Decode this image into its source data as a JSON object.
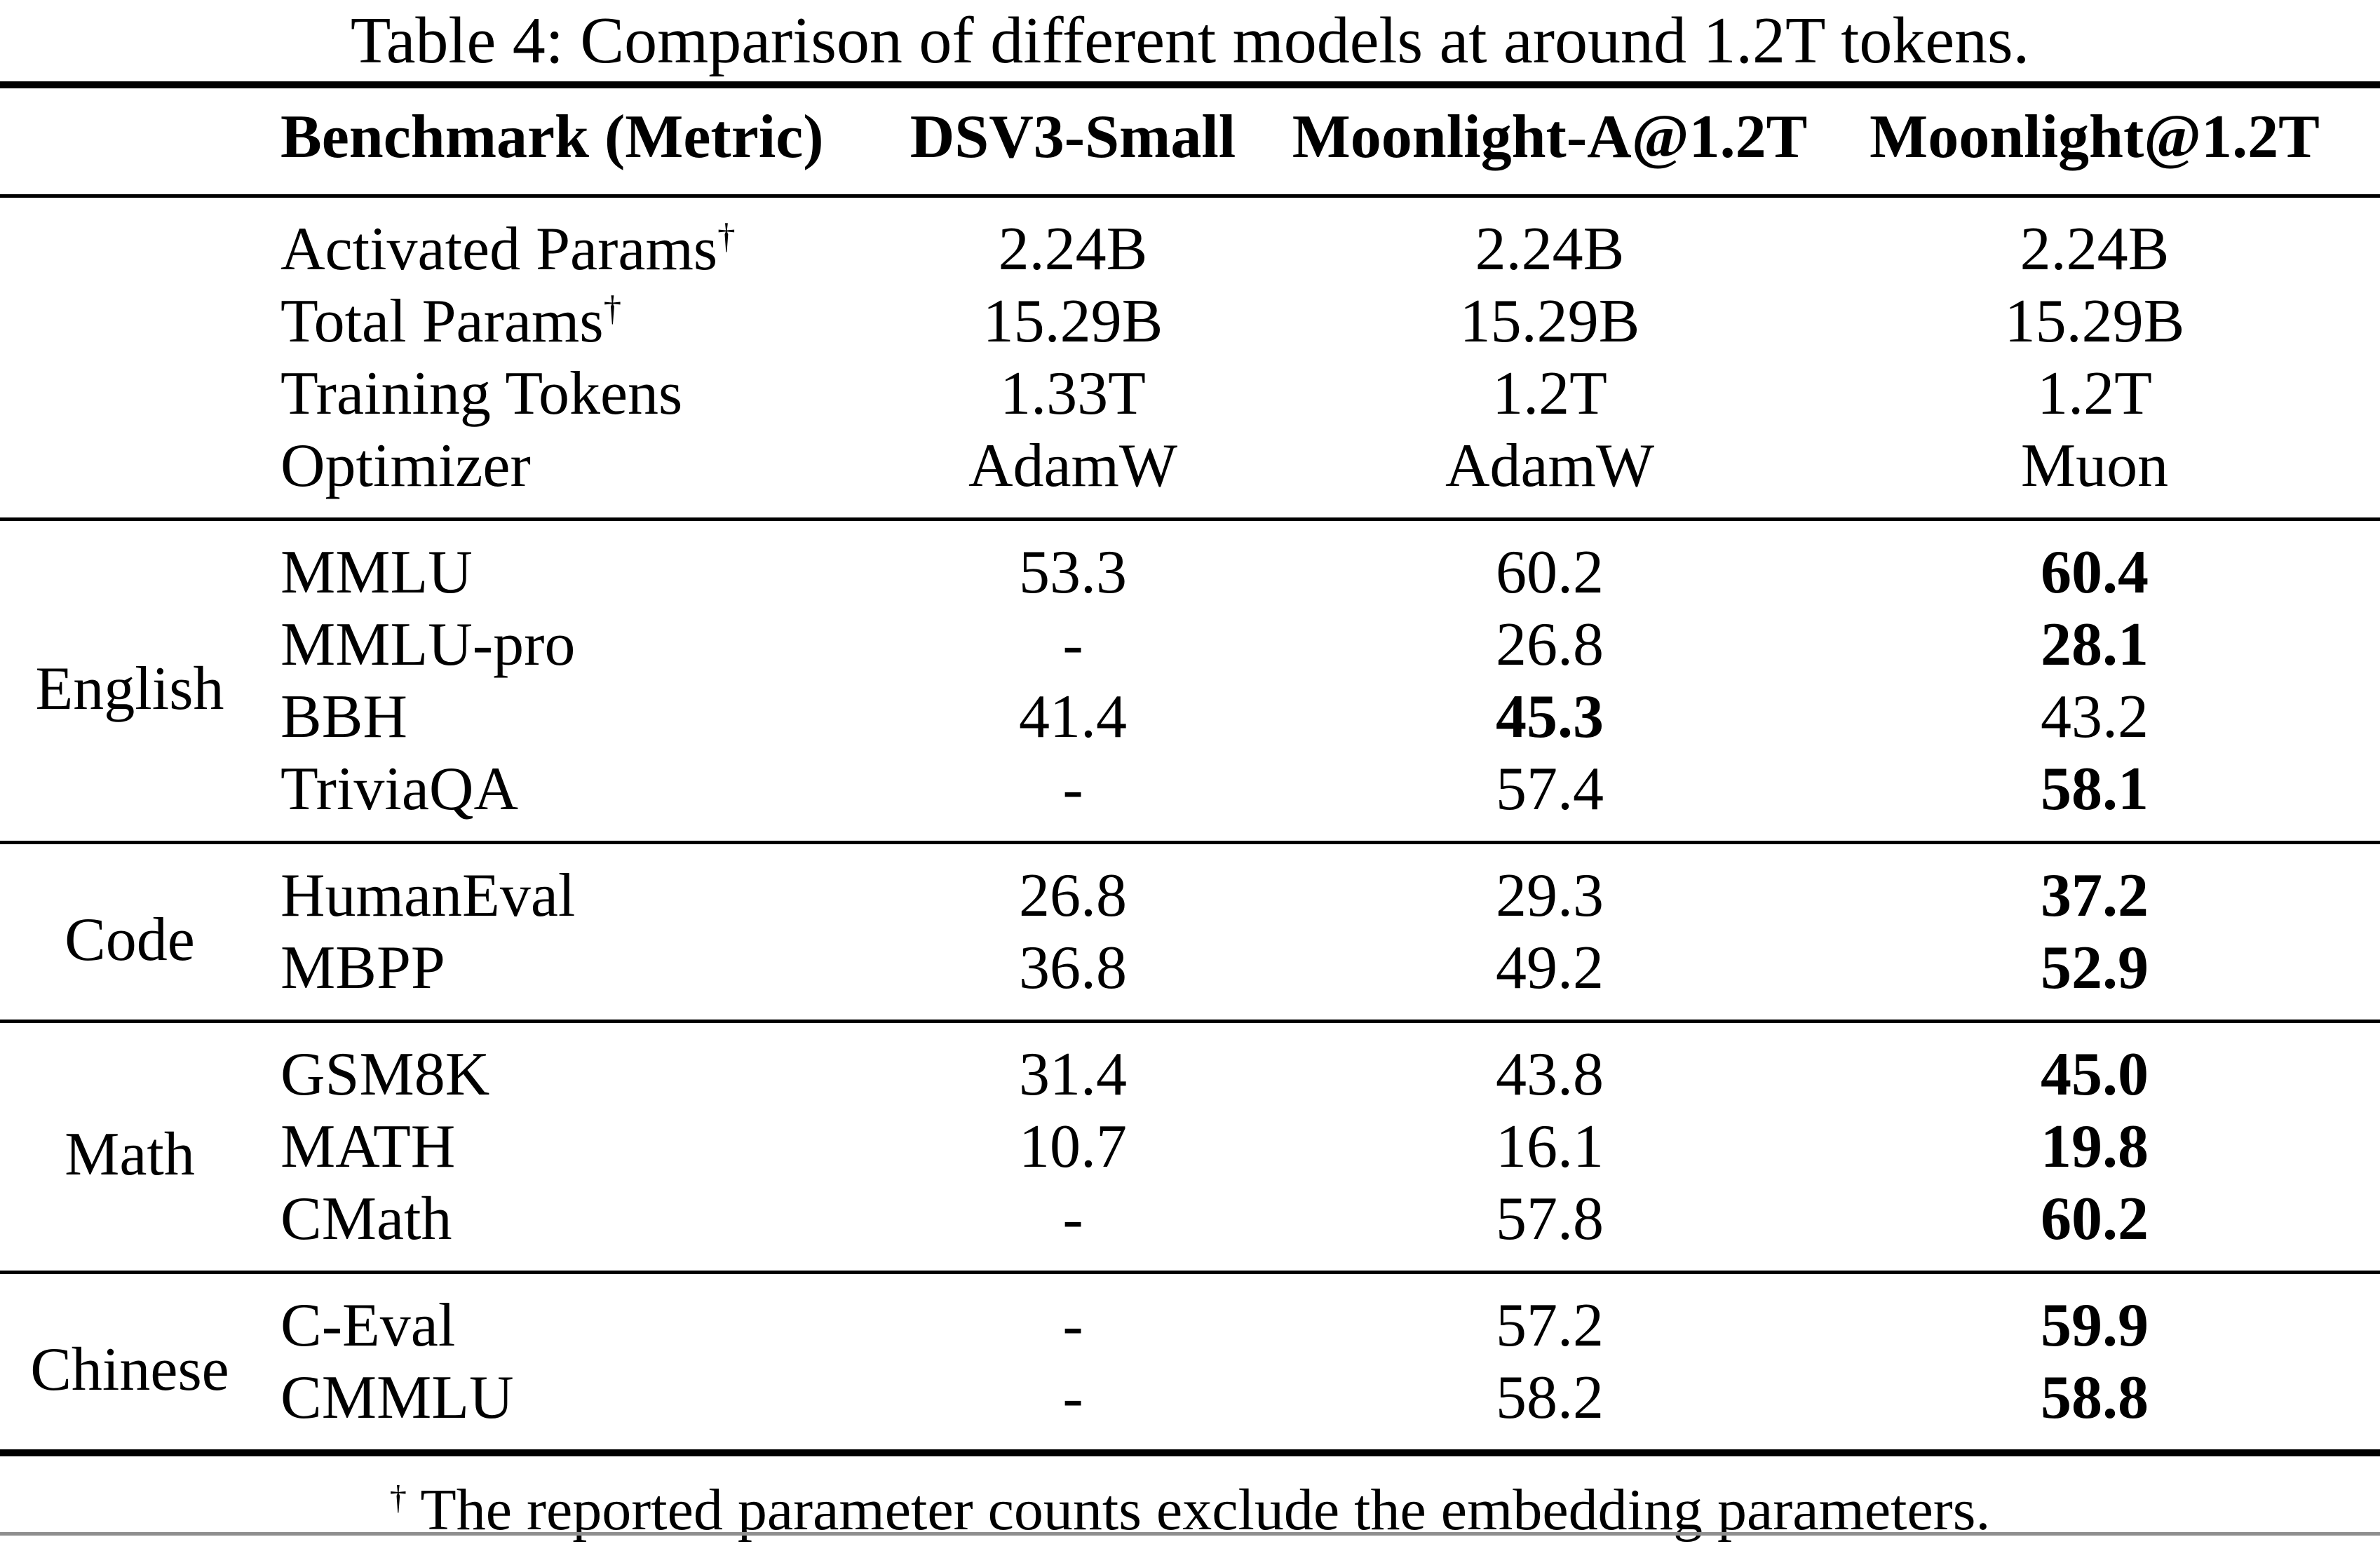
{
  "title": "Table 4: Comparison of different models at around 1.2T tokens.",
  "dagger": "†",
  "columns": [
    "Benchmark (Metric)",
    "DSV3-Small",
    "Moonlight-A@1.2T",
    "Moonlight@1.2T"
  ],
  "info_rows": [
    {
      "label": "Activated Params",
      "has_dagger": true,
      "values": [
        "2.24B",
        "2.24B",
        "2.24B"
      ]
    },
    {
      "label": "Total Params",
      "has_dagger": true,
      "values": [
        "15.29B",
        "15.29B",
        "15.29B"
      ]
    },
    {
      "label": "Training Tokens",
      "has_dagger": false,
      "values": [
        "1.33T",
        "1.2T",
        "1.2T"
      ]
    },
    {
      "label": "Optimizer",
      "has_dagger": false,
      "values": [
        "AdamW",
        "AdamW",
        "Muon"
      ]
    }
  ],
  "sections": [
    {
      "group": "English",
      "rows": [
        {
          "benchmark": "MMLU",
          "values": [
            "53.3",
            "60.2",
            "60.4"
          ],
          "bold_index": 2
        },
        {
          "benchmark": "MMLU-pro",
          "values": [
            "-",
            "26.8",
            "28.1"
          ],
          "bold_index": 2
        },
        {
          "benchmark": "BBH",
          "values": [
            "41.4",
            "45.3",
            "43.2"
          ],
          "bold_index": 1
        },
        {
          "benchmark": "TriviaQA",
          "values": [
            "-",
            "57.4",
            "58.1"
          ],
          "bold_index": 2
        }
      ]
    },
    {
      "group": "Code",
      "rows": [
        {
          "benchmark": "HumanEval",
          "values": [
            "26.8",
            "29.3",
            "37.2"
          ],
          "bold_index": 2
        },
        {
          "benchmark": "MBPP",
          "values": [
            "36.8",
            "49.2",
            "52.9"
          ],
          "bold_index": 2
        }
      ]
    },
    {
      "group": "Math",
      "rows": [
        {
          "benchmark": "GSM8K",
          "values": [
            "31.4",
            "43.8",
            "45.0"
          ],
          "bold_index": 2
        },
        {
          "benchmark": "MATH",
          "values": [
            "10.7",
            "16.1",
            "19.8"
          ],
          "bold_index": 2
        },
        {
          "benchmark": "CMath",
          "values": [
            "-",
            "57.8",
            "60.2"
          ],
          "bold_index": 2
        }
      ]
    },
    {
      "group": "Chinese",
      "rows": [
        {
          "benchmark": "C-Eval",
          "values": [
            "-",
            "57.2",
            "59.9"
          ],
          "bold_index": 2
        },
        {
          "benchmark": "CMMLU",
          "values": [
            "-",
            "58.2",
            "58.8"
          ],
          "bold_index": 2
        }
      ]
    }
  ],
  "footnote": "The reported parameter counts exclude the embedding parameters."
}
